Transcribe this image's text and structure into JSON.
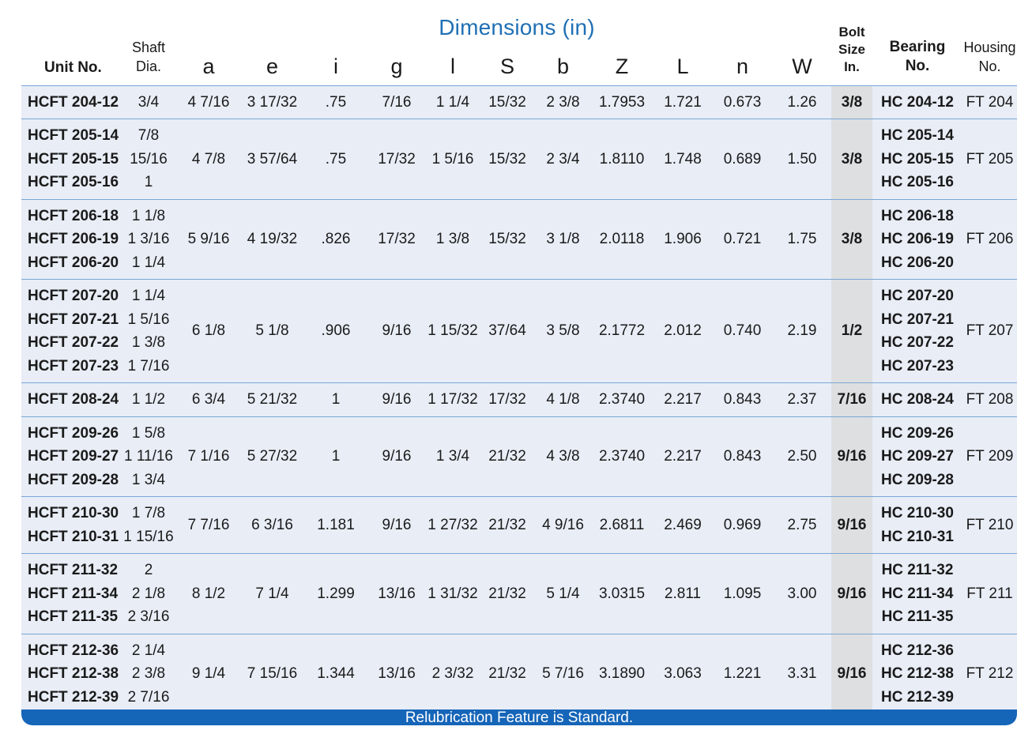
{
  "title": "Dimensions (in)",
  "headers": {
    "unit_no": "Unit No.",
    "shaft_line1": "Shaft",
    "shaft_line2": "Dia.",
    "letters": [
      "a",
      "e",
      "i",
      "g",
      "l",
      "S",
      "b",
      "Z",
      "L",
      "n",
      "W"
    ],
    "bolt_line1": "Bolt",
    "bolt_line2": "Size",
    "bolt_line3": "In.",
    "bearing_line1": "Bearing",
    "bearing_line2": "No.",
    "housing_line1": "Housing",
    "housing_line2": "No."
  },
  "rows": [
    {
      "units": [
        "HCFT 204-12"
      ],
      "shaft": [
        "3/4"
      ],
      "dims": [
        "4 7/16",
        "3 17/32",
        ".75",
        "7/16",
        "1 1/4",
        "15/32",
        "2 3/8",
        "1.7953",
        "1.721",
        "0.673",
        "1.26"
      ],
      "bolt": "3/8",
      "bearings": [
        "HC 204-12"
      ],
      "housing": "FT 204"
    },
    {
      "units": [
        "HCFT 205-14",
        "HCFT 205-15",
        "HCFT 205-16"
      ],
      "shaft": [
        "7/8",
        "15/16",
        "1"
      ],
      "dims": [
        "4 7/8",
        "3 57/64",
        ".75",
        "17/32",
        "1 5/16",
        "15/32",
        "2 3/4",
        "1.8110",
        "1.748",
        "0.689",
        "1.50"
      ],
      "bolt": "3/8",
      "bearings": [
        "HC 205-14",
        "HC 205-15",
        "HC 205-16"
      ],
      "housing": "FT 205"
    },
    {
      "units": [
        "HCFT 206-18",
        "HCFT 206-19",
        "HCFT 206-20"
      ],
      "shaft": [
        "1 1/8",
        "1 3/16",
        "1 1/4"
      ],
      "dims": [
        "5 9/16",
        "4 19/32",
        ".826",
        "17/32",
        "1 3/8",
        "15/32",
        "3 1/8",
        "2.0118",
        "1.906",
        "0.721",
        "1.75"
      ],
      "bolt": "3/8",
      "bearings": [
        "HC 206-18",
        "HC 206-19",
        "HC 206-20"
      ],
      "housing": "FT 206"
    },
    {
      "units": [
        "HCFT 207-20",
        "HCFT 207-21",
        "HCFT 207-22",
        "HCFT 207-23"
      ],
      "shaft": [
        "1 1/4",
        "1 5/16",
        "1 3/8",
        "1 7/16"
      ],
      "dims": [
        "6 1/8",
        "5 1/8",
        ".906",
        "9/16",
        "1 15/32",
        "37/64",
        "3 5/8",
        "2.1772",
        "2.012",
        "0.740",
        "2.19"
      ],
      "bolt": "1/2",
      "bearings": [
        "HC 207-20",
        "HC 207-21",
        "HC 207-22",
        "HC 207-23"
      ],
      "housing": "FT 207"
    },
    {
      "units": [
        "HCFT 208-24"
      ],
      "shaft": [
        "1 1/2"
      ],
      "dims": [
        "6 3/4",
        "5 21/32",
        "1",
        "9/16",
        "1 17/32",
        "17/32",
        "4 1/8",
        "2.3740",
        "2.217",
        "0.843",
        "2.37"
      ],
      "bolt": "7/16",
      "bearings": [
        "HC 208-24"
      ],
      "housing": "FT 208"
    },
    {
      "units": [
        "HCFT 209-26",
        "HCFT 209-27",
        "HCFT 209-28"
      ],
      "shaft": [
        "1 5/8",
        "1 11/16",
        "1 3/4"
      ],
      "dims": [
        "7 1/16",
        "5 27/32",
        "1",
        "9/16",
        "1 3/4",
        "21/32",
        "4 3/8",
        "2.3740",
        "2.217",
        "0.843",
        "2.50"
      ],
      "bolt": "9/16",
      "bearings": [
        "HC 209-26",
        "HC 209-27",
        "HC 209-28"
      ],
      "housing": "FT 209"
    },
    {
      "units": [
        "HCFT 210-30",
        "HCFT 210-31"
      ],
      "shaft": [
        "1 7/8",
        "1 15/16"
      ],
      "dims": [
        "7 7/16",
        "6 3/16",
        "1.181",
        "9/16",
        "1 27/32",
        "21/32",
        "4 9/16",
        "2.6811",
        "2.469",
        "0.969",
        "2.75"
      ],
      "bolt": "9/16",
      "bearings": [
        "HC 210-30",
        "HC 210-31"
      ],
      "housing": "FT 210"
    },
    {
      "units": [
        "HCFT 211-32",
        "HCFT 211-34",
        "HCFT 211-35"
      ],
      "shaft": [
        "2",
        "2 1/8",
        "2 3/16"
      ],
      "dims": [
        "8 1/2",
        "7 1/4",
        "1.299",
        "13/16",
        "1 31/32",
        "21/32",
        "5 1/4",
        "3.0315",
        "2.811",
        "1.095",
        "3.00"
      ],
      "bolt": "9/16",
      "bearings": [
        "HC 211-32",
        "HC 211-34",
        "HC 211-35"
      ],
      "housing": "FT 211"
    },
    {
      "units": [
        "HCFT 212-36",
        "HCFT 212-38",
        "HCFT 212-39"
      ],
      "shaft": [
        "2 1/4",
        "2 3/8",
        "2 7/16"
      ],
      "dims": [
        "9 1/4",
        "7 15/16",
        "1.344",
        "13/16",
        "2 3/32",
        "21/32",
        "5 7/16",
        "3.1890",
        "3.063",
        "1.221",
        "3.31"
      ],
      "bolt": "9/16",
      "bearings": [
        "HC 212-36",
        "HC 212-38",
        "HC 212-39"
      ],
      "housing": "FT 212"
    }
  ],
  "footer": "Relubrication Feature is Standard.",
  "colors": {
    "title": "#1f6fb5",
    "row_bg": "#e8edf6",
    "bolt_bg": "#dedfe0",
    "footer_bg": "#1565b8",
    "rule": "#7aa7d6"
  }
}
